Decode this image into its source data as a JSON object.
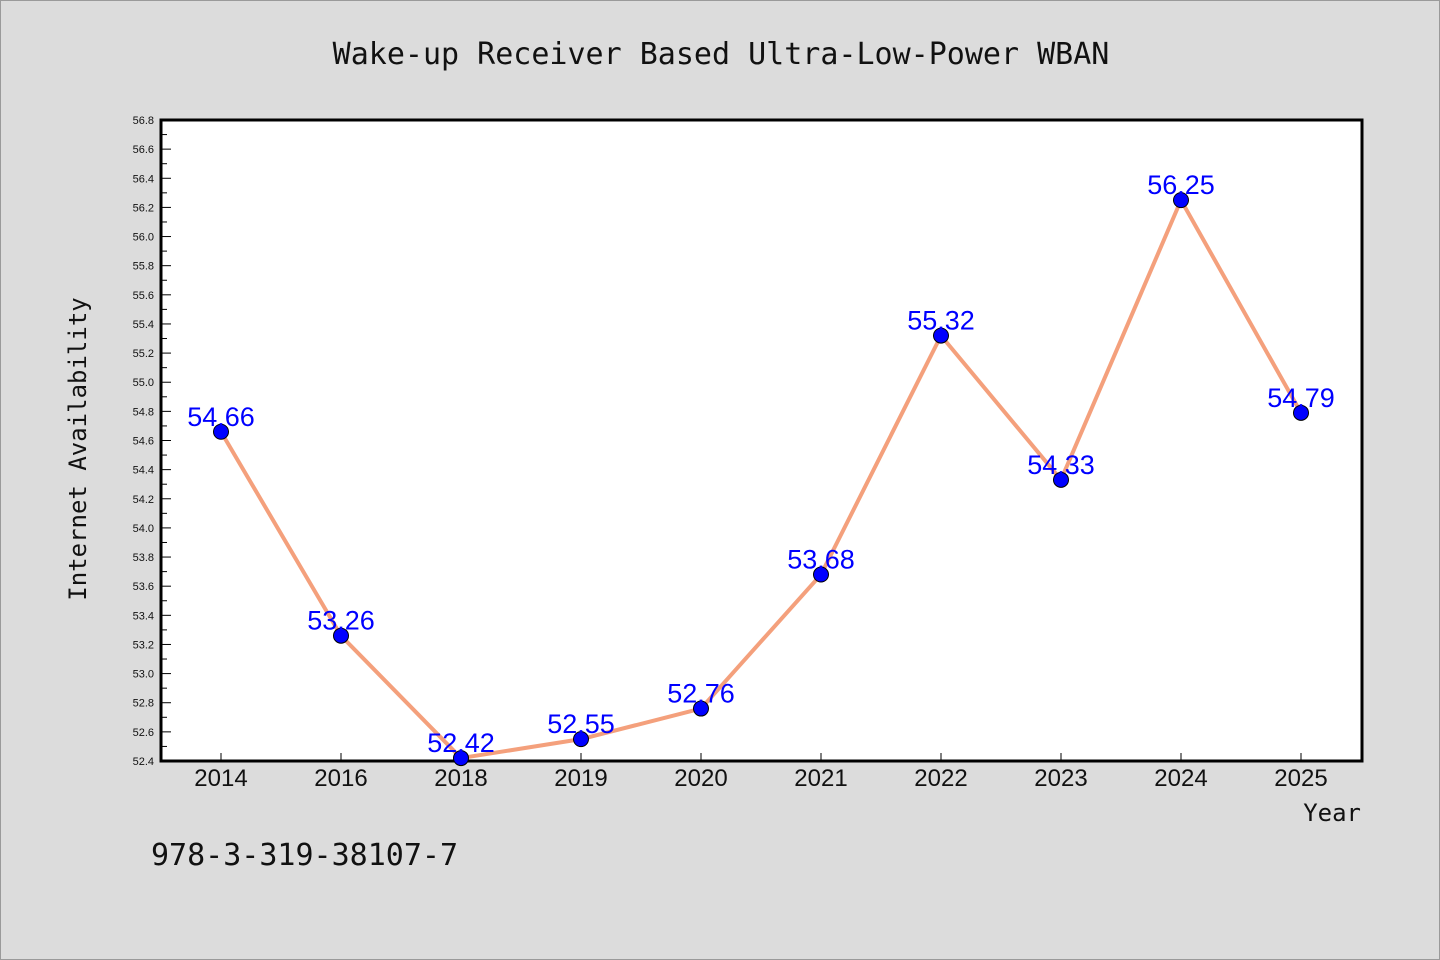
{
  "footer_text": "978-3-319-38107-7",
  "colors": {
    "background": "#dcdcdc",
    "plot_background": "#ffffff",
    "line": "#f4a07c",
    "marker": "#0000ff",
    "data_label": "#0000ff"
  },
  "chart_data": {
    "type": "line",
    "title": "Wake-up Receiver Based Ultra-Low-Power WBAN",
    "xlabel": "Year",
    "ylabel": "Internet Availability",
    "categories": [
      "2014",
      "2016",
      "2018",
      "2019",
      "2020",
      "2021",
      "2022",
      "2023",
      "2024",
      "2025"
    ],
    "series": [
      {
        "values": [
          54.66,
          53.26,
          52.42,
          52.55,
          52.76,
          53.68,
          55.32,
          54.33,
          56.25,
          54.79
        ],
        "data_labels": [
          "54.66",
          "53.26",
          "52.42",
          "52.55",
          "52.76",
          "53.68",
          "55.32",
          "54.33",
          "56.25",
          "54.79"
        ]
      }
    ],
    "ylim": [
      52.4,
      56.8
    ],
    "yticks": [
      "52.4",
      "52.6",
      "52.8",
      "53.0",
      "53.2",
      "53.4",
      "53.6",
      "53.8",
      "54.0",
      "54.2",
      "54.4",
      "54.6",
      "54.8",
      "55.0",
      "55.2",
      "55.4",
      "55.6",
      "55.8",
      "56.0",
      "56.2",
      "56.4",
      "56.6",
      "56.8"
    ],
    "grid": false,
    "legend": "none"
  }
}
